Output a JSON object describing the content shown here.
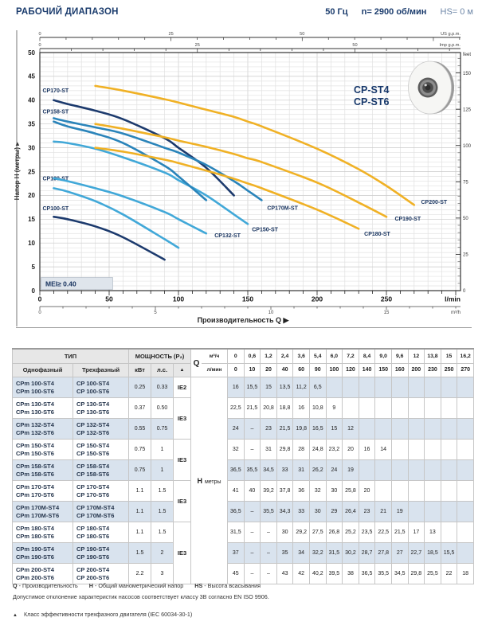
{
  "page": {
    "title": "РАБОЧИЙ ДИАПАЗОН",
    "frequency": "50 Гц",
    "speed": "n= 2900 об/мин",
    "suction_head": "HS= 0 м"
  },
  "chart": {
    "model_line1": "CP-ST4",
    "model_line2": "CP-ST6",
    "mei_label": "MEI≥ 0.40",
    "y_axis_label": "Напор H (метры)  ▸",
    "x_axis_label": "Производительность Q  ▶"
  },
  "chart_data": {
    "type": "line",
    "title": "РАБОЧИЙ ДИАПАЗОН",
    "xlabel": "Производительность Q",
    "ylabel": "Напор H (метры)",
    "x_unit": "l/min",
    "y_unit": "m",
    "xlim": [
      0,
      303
    ],
    "ylim": [
      0,
      50
    ],
    "grid": true,
    "units": {
      "us": "US g.p.m.",
      "imp": "Imp g.p.m.",
      "feet": "feet",
      "lmin": "l/min",
      "m3h": "m³/h"
    },
    "x_ticks_lmin": [
      0,
      50,
      100,
      150,
      200,
      250
    ],
    "x_ticks_m3h": [
      0,
      5,
      10,
      15
    ],
    "y_ticks_m": [
      0,
      5,
      10,
      15,
      20,
      25,
      30,
      35,
      40,
      45,
      50
    ],
    "y_ticks_feet": [
      0,
      25,
      50,
      75,
      100,
      125,
      150
    ],
    "us_gpm_ticks": [
      0,
      25,
      50
    ],
    "imp_gpm_ticks": [
      0,
      25,
      50
    ],
    "series": [
      {
        "name": "CP100-ST",
        "color": "#1c3a6d",
        "label_pos": [
          2,
          16.9
        ],
        "points": [
          [
            10,
            15.5
          ],
          [
            20,
            15
          ],
          [
            40,
            13.5
          ],
          [
            60,
            11.2
          ],
          [
            90,
            6.5
          ]
        ]
      },
      {
        "name": "CP130-ST",
        "color": "#41a8d8",
        "label_pos": [
          2,
          23.2
        ],
        "points": [
          [
            10,
            21.5
          ],
          [
            20,
            20.8
          ],
          [
            40,
            18.8
          ],
          [
            60,
            16
          ],
          [
            90,
            10.8
          ],
          [
            100,
            9
          ]
        ]
      },
      {
        "name": "CP132-ST",
        "color": "#41a8d8",
        "label_pos": [
          126,
          11.2
        ],
        "points": [
          [
            10,
            23.6
          ],
          [
            20,
            23
          ],
          [
            40,
            21.5
          ],
          [
            60,
            19.8
          ],
          [
            90,
            16.5
          ],
          [
            100,
            15
          ],
          [
            120,
            12
          ]
        ]
      },
      {
        "name": "CP150-ST",
        "color": "#41a8d8",
        "label_pos": [
          153,
          12.5
        ],
        "points": [
          [
            10,
            31.3
          ],
          [
            20,
            31
          ],
          [
            40,
            29.8
          ],
          [
            60,
            28
          ],
          [
            90,
            24.8
          ],
          [
            100,
            23.2
          ],
          [
            120,
            20
          ],
          [
            140,
            16
          ],
          [
            150,
            14
          ]
        ]
      },
      {
        "name": "CP158-ST",
        "color": "#2a84ba",
        "label_pos": [
          2,
          37.2
        ],
        "points": [
          [
            10,
            35.5
          ],
          [
            20,
            34.5
          ],
          [
            40,
            33
          ],
          [
            60,
            31
          ],
          [
            90,
            26.2
          ],
          [
            100,
            24
          ],
          [
            120,
            19
          ]
        ]
      },
      {
        "name": "CP170-ST",
        "color": "#1c3a6d",
        "label_pos": [
          2,
          41.6
        ],
        "points": [
          [
            10,
            40
          ],
          [
            20,
            39.2
          ],
          [
            40,
            37.8
          ],
          [
            60,
            36
          ],
          [
            90,
            32
          ],
          [
            100,
            30
          ],
          [
            120,
            25.8
          ],
          [
            140,
            20
          ]
        ]
      },
      {
        "name": "CP170M-ST",
        "color": "#2a84ba",
        "label_pos": [
          164,
          17.0
        ],
        "points": [
          [
            10,
            36.2
          ],
          [
            20,
            35.5
          ],
          [
            40,
            34.3
          ],
          [
            60,
            33
          ],
          [
            90,
            30
          ],
          [
            100,
            29
          ],
          [
            120,
            26.4
          ],
          [
            140,
            23
          ],
          [
            150,
            21
          ],
          [
            160,
            19
          ]
        ]
      },
      {
        "name": "CP180-ST",
        "color": "#f0b125",
        "label_pos": [
          234,
          11.5
        ],
        "points": [
          [
            40,
            30
          ],
          [
            60,
            29.2
          ],
          [
            90,
            27.5
          ],
          [
            100,
            26.8
          ],
          [
            120,
            25.2
          ],
          [
            140,
            23.5
          ],
          [
            150,
            22.5
          ],
          [
            160,
            21.5
          ],
          [
            200,
            17
          ],
          [
            230,
            13
          ]
        ]
      },
      {
        "name": "CP190-ST",
        "color": "#f0b125",
        "label_pos": [
          256,
          14.7
        ],
        "points": [
          [
            40,
            35
          ],
          [
            60,
            34
          ],
          [
            90,
            32.2
          ],
          [
            100,
            31.5
          ],
          [
            120,
            30.2
          ],
          [
            140,
            28.7
          ],
          [
            150,
            27.8
          ],
          [
            160,
            27
          ],
          [
            200,
            22.7
          ],
          [
            230,
            18.5
          ],
          [
            250,
            15.5
          ]
        ]
      },
      {
        "name": "CP200-ST",
        "color": "#f0b125",
        "label_pos": [
          275,
          18.2
        ],
        "points": [
          [
            40,
            43
          ],
          [
            60,
            42
          ],
          [
            90,
            40.2
          ],
          [
            100,
            39.5
          ],
          [
            120,
            38
          ],
          [
            140,
            36.5
          ],
          [
            150,
            35.5
          ],
          [
            160,
            34.5
          ],
          [
            200,
            29.8
          ],
          [
            230,
            25.5
          ],
          [
            250,
            22
          ],
          [
            270,
            18
          ]
        ]
      }
    ]
  },
  "table": {
    "type_header": "ТИП",
    "power_header": "МОЩНОСТЬ (Р₂)",
    "col_single": "Однофазный",
    "col_three": "Трехфазный",
    "col_kw": "кВт",
    "col_hp": "л.с.",
    "col_class": "▲",
    "q_label": "Q",
    "q_unit_top": "м³/ч",
    "q_unit_bottom": "л/мин",
    "h_label": "H",
    "h_unit": "метры",
    "m3h_values": [
      "0",
      "0,6",
      "1,2",
      "2,4",
      "3,6",
      "5,4",
      "6,0",
      "7,2",
      "8,4",
      "9,0",
      "9,6",
      "12",
      "13,8",
      "15",
      "16,2"
    ],
    "lmin_values": [
      "0",
      "10",
      "20",
      "40",
      "60",
      "90",
      "100",
      "120",
      "140",
      "150",
      "160",
      "200",
      "230",
      "250",
      "270"
    ],
    "rows": [
      {
        "single": [
          "CPm 100-ST4",
          "CPm 100-ST6"
        ],
        "three": [
          "CP 100-ST4",
          "CP 100-ST6"
        ],
        "kw": "0.25",
        "hp": "0.33",
        "eff": "IE2",
        "eff_span": 1,
        "h": [
          "16",
          "15,5",
          "15",
          "13,5",
          "11,2",
          "6,5",
          "",
          "",
          "",
          "",
          "",
          "",
          "",
          "",
          ""
        ]
      },
      {
        "single": [
          "CPm 130-ST4",
          "CPm 130-ST6"
        ],
        "three": [
          "CP 130-ST4",
          "CP 130-ST6"
        ],
        "kw": "0.37",
        "hp": "0.50",
        "eff": "IE3",
        "eff_span": 2,
        "h": [
          "22,5",
          "21,5",
          "20,8",
          "18,8",
          "16",
          "10,8",
          "9",
          "",
          "",
          "",
          "",
          "",
          "",
          "",
          ""
        ]
      },
      {
        "single": [
          "CPm 132-ST4",
          "CPm 132-ST6"
        ],
        "three": [
          "CP 132-ST4",
          "CP 132-ST6"
        ],
        "kw": "0.55",
        "hp": "0.75",
        "h": [
          "24",
          "–",
          "23",
          "21,5",
          "19,8",
          "16,5",
          "15",
          "12",
          "",
          "",
          "",
          "",
          "",
          "",
          ""
        ]
      },
      {
        "single": [
          "CPm 150-ST4",
          "CPm 150-ST6"
        ],
        "three": [
          "CP 150-ST4",
          "CP 150-ST6"
        ],
        "kw": "0.75",
        "hp": "1",
        "eff": "IE3",
        "eff_span": 2,
        "h": [
          "32",
          "–",
          "31",
          "29,8",
          "28",
          "24,8",
          "23,2",
          "20",
          "16",
          "14",
          "",
          "",
          "",
          "",
          ""
        ]
      },
      {
        "single": [
          "CPm 158-ST4",
          "CPm 158-ST6"
        ],
        "three": [
          "CP 158-ST4",
          "CP 158-ST6"
        ],
        "kw": "0.75",
        "hp": "1",
        "h": [
          "36,5",
          "35,5",
          "34,5",
          "33",
          "31",
          "26,2",
          "24",
          "19",
          "",
          "",
          "",
          "",
          "",
          "",
          ""
        ]
      },
      {
        "single": [
          "CPm 170-ST4",
          "CPm 170-ST6"
        ],
        "three": [
          "CP 170-ST4",
          "CP 170-ST6"
        ],
        "kw": "1.1",
        "hp": "1.5",
        "eff": "IE3",
        "eff_span": 2,
        "h": [
          "41",
          "40",
          "39,2",
          "37,8",
          "36",
          "32",
          "30",
          "25,8",
          "20",
          "",
          "",
          "",
          "",
          "",
          ""
        ]
      },
      {
        "single": [
          "CPm 170M-ST4",
          "CPm 170M-ST6"
        ],
        "three": [
          "CP 170M-ST4",
          "CP 170M-ST6"
        ],
        "kw": "1.1",
        "hp": "1.5",
        "h": [
          "36,5",
          "–",
          "35,5",
          "34,3",
          "33",
          "30",
          "29",
          "26,4",
          "23",
          "21",
          "19",
          "",
          "",
          "",
          ""
        ]
      },
      {
        "single": [
          "CPm 180-ST4",
          "CPm 180-ST6"
        ],
        "three": [
          "CP 180-ST4",
          "CP 180-ST6"
        ],
        "kw": "1.1",
        "hp": "1.5",
        "eff": "IE3",
        "eff_span": 3,
        "h": [
          "31,5",
          "–",
          "–",
          "30",
          "29,2",
          "27,5",
          "26,8",
          "25,2",
          "23,5",
          "22,5",
          "21,5",
          "17",
          "13",
          "",
          ""
        ]
      },
      {
        "single": [
          "CPm 190-ST4",
          "CPm 190-ST6"
        ],
        "three": [
          "CP 190-ST4",
          "CP 190-ST6"
        ],
        "kw": "1.5",
        "hp": "2",
        "h": [
          "37",
          "–",
          "–",
          "35",
          "34",
          "32,2",
          "31,5",
          "30,2",
          "28,7",
          "27,8",
          "27",
          "22,7",
          "18,5",
          "15,5",
          ""
        ]
      },
      {
        "single": [
          "CPm 200-ST4",
          "CPm 200-ST6"
        ],
        "three": [
          "CP 200-ST4",
          "CP 200-ST6"
        ],
        "kw": "2.2",
        "hp": "3",
        "h": [
          "45",
          "–",
          "–",
          "43",
          "42",
          "40,2",
          "39,5",
          "38",
          "36,5",
          "35,5",
          "34,5",
          "29,8",
          "25,5",
          "22",
          "18"
        ]
      }
    ]
  },
  "footer": {
    "legend": [
      {
        "key": "Q",
        "desc": "- Производительность"
      },
      {
        "key": "H",
        "desc": "- Общий манометрический напор"
      },
      {
        "key": "HS",
        "desc": "- Высота всасывания"
      }
    ],
    "tolerance": "Допустимое отклонение характеристик насосов соответствует классу 3В согласно EN ISO 9906.",
    "eff_note_mark": "▲",
    "eff_note": "Класс эффективности трехфазного двигателя (IEC 60034-30-1)"
  }
}
